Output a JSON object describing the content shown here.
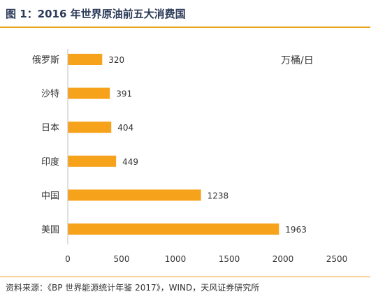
{
  "figure": {
    "title": "图 1：2016 年世界原油前五大消费国",
    "unit": "万桶/日",
    "source": "资料来源：《BP 世界能源统计年鉴 2017》，WIND，天风证券研究所"
  },
  "colors": {
    "bar": "#f7a21b",
    "accent_rule": "#e8a317",
    "axis": "#bfbfbf"
  },
  "chart_data": {
    "type": "bar",
    "orientation": "horizontal",
    "categories": [
      "俄罗斯",
      "沙特",
      "日本",
      "印度",
      "中国",
      "美国"
    ],
    "values": [
      320,
      391,
      404,
      449,
      1238,
      1963
    ],
    "xlim": [
      0,
      2500
    ],
    "xticks": [
      0,
      500,
      1000,
      1500,
      2000,
      2500
    ],
    "grid": false,
    "data_labels": true
  }
}
